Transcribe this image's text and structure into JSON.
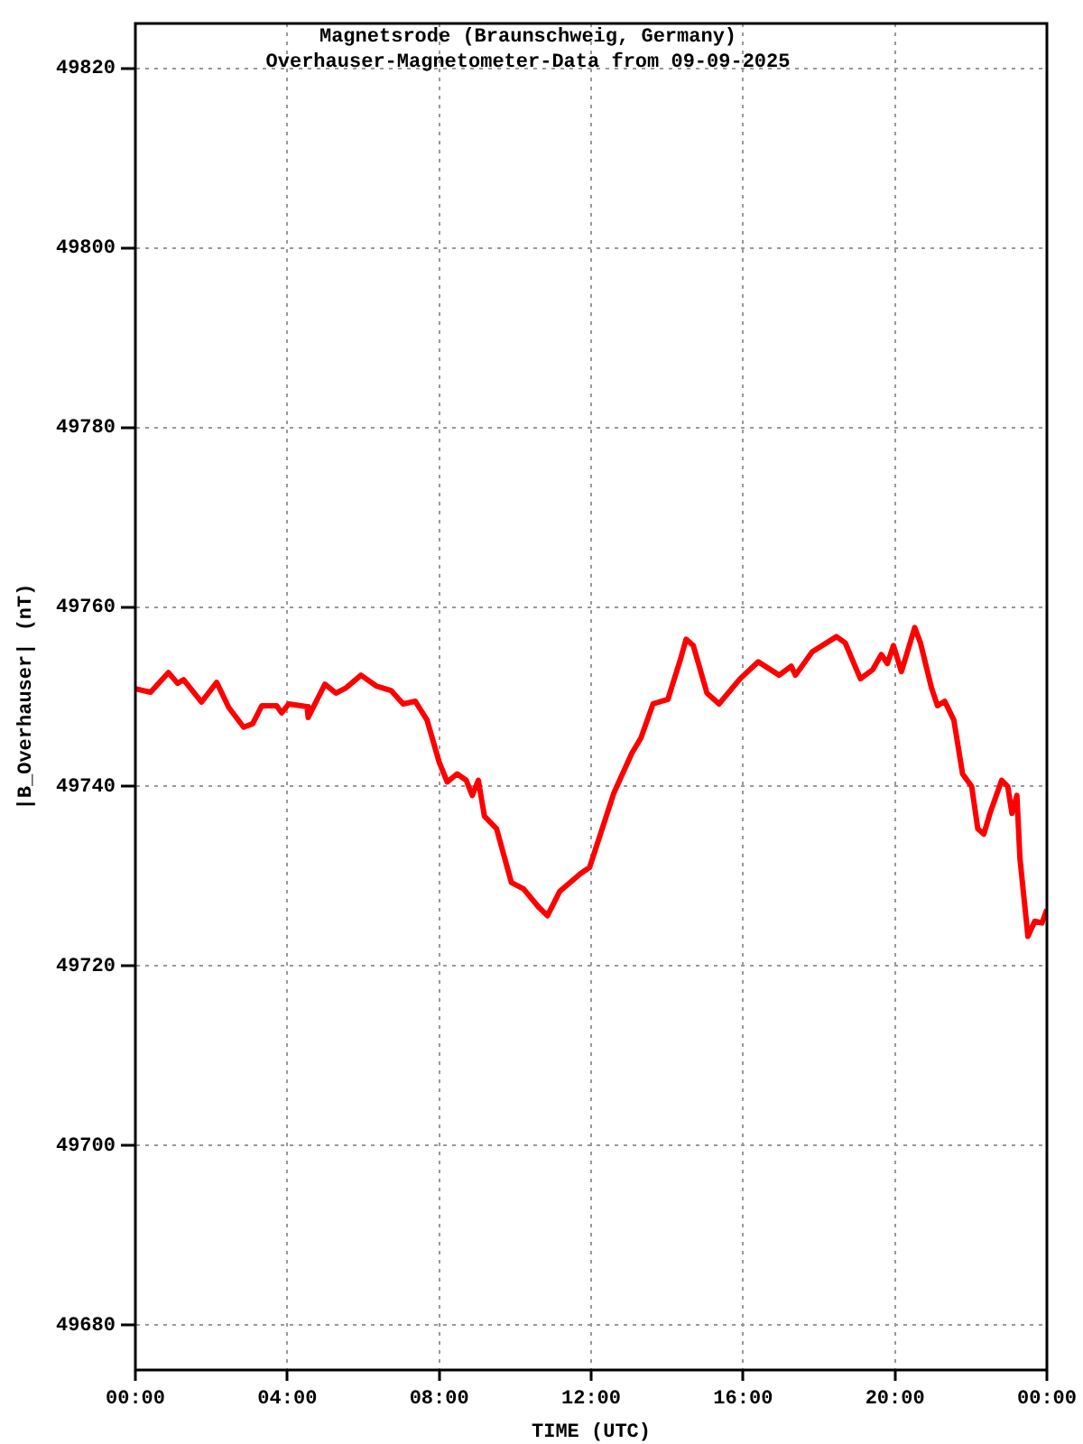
{
  "chart_data": {
    "type": "line",
    "title": "Magnetsrode (Braunschweig, Germany)",
    "subtitle": "Overhauser-Magnetometer-Data from 09-09-2025",
    "xlabel": "TIME (UTC)",
    "ylabel": "|B_Overhauser| (nT)",
    "x": [
      0,
      0.4,
      0.87,
      1.11,
      1.27,
      1.74,
      2.14,
      2.46,
      2.85,
      3.09,
      3.33,
      3.72,
      3.85,
      4.04,
      4.52,
      4.55,
      4.99,
      5.28,
      5.55,
      5.94,
      6.34,
      6.73,
      7.05,
      7.37,
      7.68,
      8.0,
      8.21,
      8.47,
      8.71,
      8.87,
      9.03,
      9.19,
      9.51,
      9.9,
      10.22,
      10.61,
      10.85,
      11.17,
      11.72,
      11.96,
      12.6,
      13.07,
      13.31,
      13.63,
      14.02,
      14.34,
      14.5,
      14.69,
      15.05,
      15.37,
      15.92,
      16.4,
      16.95,
      17.27,
      17.38,
      17.82,
      18.46,
      18.69,
      19.09,
      19.41,
      19.64,
      19.8,
      19.96,
      20.17,
      20.52,
      20.67,
      20.96,
      21.12,
      21.31,
      21.55,
      21.78,
      22.02,
      22.18,
      22.34,
      22.5,
      22.81,
      22.97,
      23.08,
      23.21,
      23.29,
      23.5,
      23.68,
      23.87,
      24.0
    ],
    "series": [
      {
        "color": "#ff0000",
        "values": [
          49750.9,
          49750.5,
          49752.7,
          49751.5,
          49751.9,
          49749.4,
          49751.6,
          49748.8,
          49746.6,
          49747.0,
          49749.0,
          49749.0,
          49748.2,
          49749.2,
          49748.9,
          49747.7,
          49751.4,
          49750.4,
          49751.0,
          49752.4,
          49751.2,
          49750.7,
          49749.2,
          49749.5,
          49747.4,
          49742.7,
          49740.5,
          49741.4,
          49740.7,
          49739.0,
          49740.7,
          49736.7,
          49735.3,
          49729.3,
          49728.6,
          49726.6,
          49725.6,
          49728.3,
          49730.3,
          49731.0,
          49739.3,
          49743.7,
          49745.4,
          49749.2,
          49749.7,
          49754.0,
          49756.4,
          49755.7,
          49750.4,
          49749.2,
          49752.0,
          49753.9,
          49752.4,
          49753.4,
          49752.4,
          49755.0,
          49756.7,
          49756.0,
          49752.0,
          49753.0,
          49754.7,
          49753.7,
          49755.7,
          49752.8,
          49757.7,
          49756.0,
          49751.0,
          49749.0,
          49749.5,
          49747.4,
          49741.4,
          49740.0,
          49735.3,
          49734.7,
          49737.0,
          49740.7,
          49740.0,
          49737.0,
          49739.0,
          49732.0,
          49723.3,
          49725.0,
          49724.8,
          49726.3
        ]
      }
    ],
    "xlim": [
      0,
      24
    ],
    "xticks": [
      {
        "value": 0,
        "label": "00:00"
      },
      {
        "value": 4,
        "label": "04:00"
      },
      {
        "value": 8,
        "label": "08:00"
      },
      {
        "value": 12,
        "label": "12:00"
      },
      {
        "value": 16,
        "label": "16:00"
      },
      {
        "value": 20,
        "label": "20:00"
      },
      {
        "value": 24,
        "label": "00:00"
      }
    ],
    "ylim": [
      49675,
      49825
    ],
    "yticks": [
      49680,
      49700,
      49720,
      49740,
      49760,
      49780,
      49800,
      49820
    ],
    "grid": true,
    "legend": false,
    "marker": "none",
    "line_style": "solid"
  }
}
